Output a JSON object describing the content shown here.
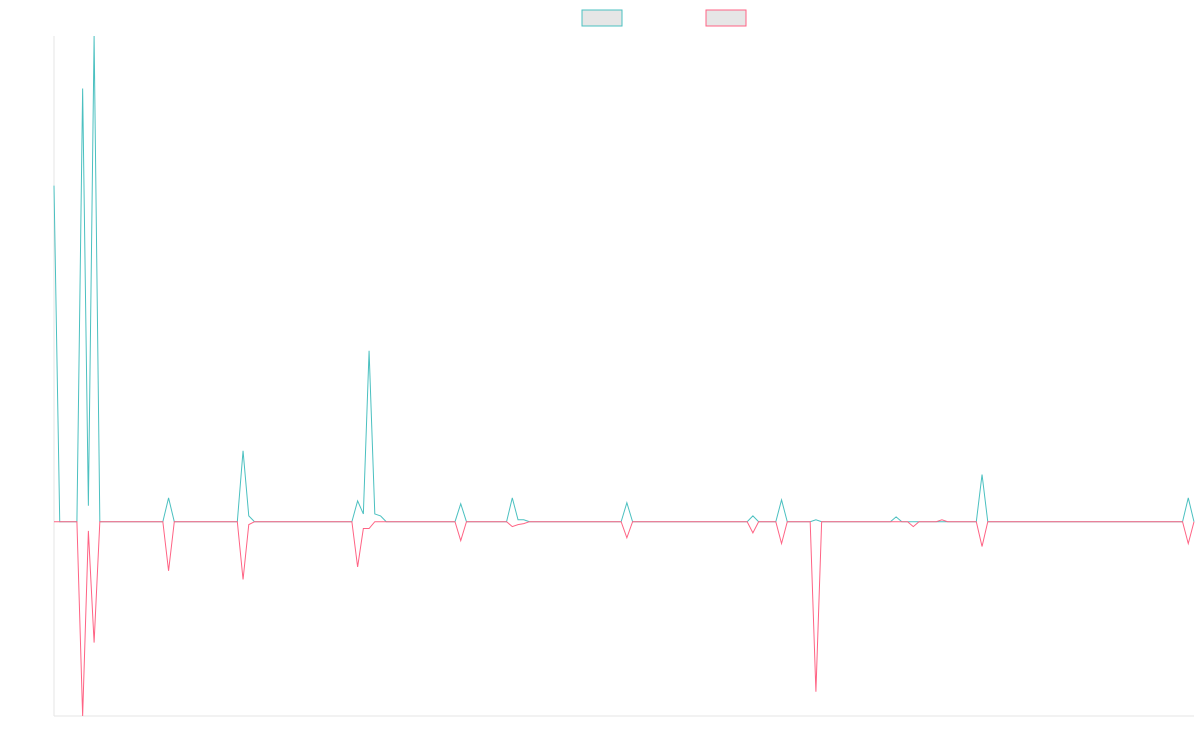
{
  "chart_data": {
    "type": "line",
    "ylim": [
      -40,
      100
    ],
    "legend": "top",
    "series": [
      {
        "color": "#4bc0c0",
        "values": [
          69.2,
          0,
          0,
          0,
          0,
          89.2,
          3.3,
          100,
          0,
          0,
          0,
          0,
          0,
          0,
          0,
          0,
          0,
          0,
          0,
          0,
          4.9,
          0,
          0,
          0,
          0,
          0,
          0,
          0,
          0,
          0,
          0,
          0,
          0,
          14.6,
          1.2,
          0,
          0,
          0,
          0,
          0,
          0,
          0,
          0,
          0,
          0,
          0,
          0,
          0,
          0,
          0,
          0,
          0,
          0,
          4.3,
          1.6,
          35.2,
          1.6,
          1.2,
          0,
          0,
          0,
          0,
          0,
          0,
          0,
          0,
          0,
          0,
          0,
          0,
          0,
          3.7,
          0,
          0,
          0,
          0,
          0,
          0,
          0,
          0,
          4.9,
          0.4,
          0.4,
          0,
          0,
          0,
          0,
          0,
          0,
          0,
          0,
          0,
          0,
          0,
          0,
          0,
          0,
          0,
          0,
          0,
          3.9,
          0,
          0,
          0,
          0,
          0,
          0,
          0,
          0,
          0,
          0,
          0,
          0,
          0,
          0,
          0,
          0,
          0,
          0,
          0,
          0,
          0,
          1.2,
          0,
          0,
          0,
          0,
          4.5,
          0,
          0,
          0,
          0,
          0,
          0.4,
          0,
          0,
          0,
          0,
          0,
          0,
          0,
          0,
          0,
          0,
          0,
          0,
          0,
          1,
          0,
          0,
          0,
          0,
          0,
          0,
          0,
          0,
          0,
          0,
          0,
          0,
          0,
          0,
          9.7,
          0,
          0,
          0,
          0,
          0,
          0,
          0,
          0,
          0,
          0,
          0,
          0,
          0,
          0,
          0,
          0,
          0,
          0,
          0,
          0,
          0,
          0,
          0,
          0,
          0,
          0,
          0,
          0,
          0,
          0,
          0,
          0,
          0,
          0,
          0,
          4.9,
          0
        ]
      },
      {
        "color": "#ff6384",
        "values": [
          0,
          0,
          0,
          0,
          0,
          -40,
          -1.9,
          -24.9,
          0,
          0,
          0,
          0,
          0,
          0,
          0,
          0,
          0,
          0,
          0,
          0,
          -10.1,
          0,
          0,
          0,
          0,
          0,
          0,
          0,
          0,
          0,
          0,
          0,
          0,
          -11.9,
          -0.6,
          0,
          0,
          0,
          0,
          0,
          0,
          0,
          0,
          0,
          0,
          0,
          0,
          0,
          0,
          0,
          0,
          0,
          0,
          -9.3,
          -1.4,
          -1.4,
          0,
          0,
          0,
          0,
          0,
          0,
          0,
          0,
          0,
          0,
          0,
          0,
          0,
          0,
          0,
          -3.9,
          0,
          0,
          0,
          0,
          0,
          0,
          0,
          0,
          -1,
          -0.6,
          -0.4,
          0,
          0,
          0,
          0,
          0,
          0,
          0,
          0,
          0,
          0,
          0,
          0,
          0,
          0,
          0,
          0,
          0,
          -3.3,
          0,
          0,
          0,
          0,
          0,
          0,
          0,
          0,
          0,
          0,
          0,
          0,
          0,
          0,
          0,
          0,
          0,
          0,
          0,
          0,
          0,
          -2.3,
          0,
          0,
          0,
          0,
          -4.5,
          0,
          0,
          0,
          0,
          0,
          -35,
          0,
          0,
          0,
          0,
          0,
          0,
          0,
          0,
          0,
          0,
          0,
          0,
          0,
          0,
          0,
          0,
          -1,
          0,
          0,
          0,
          0,
          0.4,
          0,
          0,
          0,
          0,
          0,
          0,
          -5.1,
          0,
          0,
          0,
          0,
          0,
          0,
          0,
          0,
          0,
          0,
          0,
          0,
          0,
          0,
          0,
          0,
          0,
          0,
          0,
          0,
          0,
          0,
          0,
          0,
          0,
          0,
          0,
          0,
          0,
          0,
          0,
          0,
          0,
          0,
          0,
          -4.5,
          0
        ]
      }
    ]
  }
}
